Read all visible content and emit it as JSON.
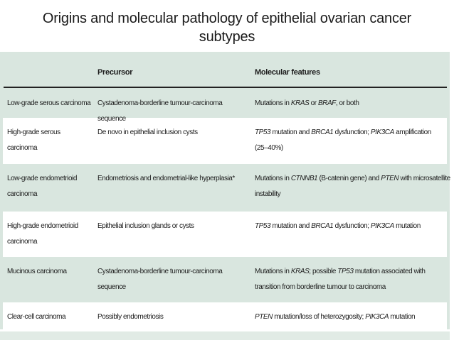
{
  "slide": {
    "title": "Origins and molecular pathology of epithelial ovarian cancer\nsubtypes"
  },
  "table": {
    "headers": {
      "subtype": "",
      "precursor": "Precursor",
      "molecular": "Molecular features"
    },
    "rows": [
      {
        "subtype": "Low-grade serous carcinoma",
        "precursor": "Cystadenoma-borderline tumour-carcinoma sequence",
        "molecular": [
          {
            "t": "Mutations in "
          },
          {
            "t": "KRAS",
            "i": true
          },
          {
            "t": " or "
          },
          {
            "t": "BRAF",
            "i": true
          },
          {
            "t": ", or both"
          }
        ]
      },
      {
        "subtype": "High-grade serous carcinoma",
        "precursor": "De novo in epithelial inclusion cysts",
        "molecular": [
          {
            "t": "TP53",
            "i": true
          },
          {
            "t": " mutation and "
          },
          {
            "t": "BRCA1",
            "i": true
          },
          {
            "t": " dysfunction; "
          },
          {
            "t": "PIK3CA",
            "i": true
          },
          {
            "t": " amplification\n(25–40%)"
          }
        ]
      },
      {
        "subtype": "Low-grade endometrioid\ncarcinoma",
        "precursor": "Endometriosis and endometrial-like hyperplasia*",
        "molecular": [
          {
            "t": "Mutations in "
          },
          {
            "t": "CTNNB1",
            "i": true
          },
          {
            "t": " (B-catenin gene) and "
          },
          {
            "t": "PTEN",
            "i": true
          },
          {
            "t": " with microsatellite\ninstability"
          }
        ]
      },
      {
        "subtype": "High-grade endometrioid\ncarcinoma",
        "precursor": "Epithelial inclusion glands or cysts",
        "molecular": [
          {
            "t": "TP53",
            "i": true
          },
          {
            "t": " mutation and "
          },
          {
            "t": "BRCA1",
            "i": true
          },
          {
            "t": " dysfunction; "
          },
          {
            "t": "PIK3CA",
            "i": true
          },
          {
            "t": " mutation"
          }
        ]
      },
      {
        "subtype": "Mucinous carcinoma",
        "precursor": "Cystadenoma-borderline tumour-carcinoma sequence",
        "molecular": [
          {
            "t": "Mutations in "
          },
          {
            "t": "KRAS",
            "i": true
          },
          {
            "t": "; possible "
          },
          {
            "t": "TP53",
            "i": true
          },
          {
            "t": " mutation associated with\ntransition from borderline tumour to carcinoma"
          }
        ]
      },
      {
        "subtype": "Clear-cell carcinoma",
        "precursor": "Possibly endometriosis",
        "molecular": [
          {
            "t": "PTEN",
            "i": true
          },
          {
            "t": " mutation/loss of heterozygosity; "
          },
          {
            "t": "PIK3CA",
            "i": true
          },
          {
            "t": " mutation"
          }
        ]
      }
    ]
  },
  "colors": {
    "background": "#ffffff",
    "table_green": "#d9e6df",
    "footer_green": "#e1ebe5",
    "rule_dark": "#222222",
    "text_dark": "#1c1c1c",
    "title_color": "#1a1a1a",
    "row_white": "#ffffff"
  }
}
